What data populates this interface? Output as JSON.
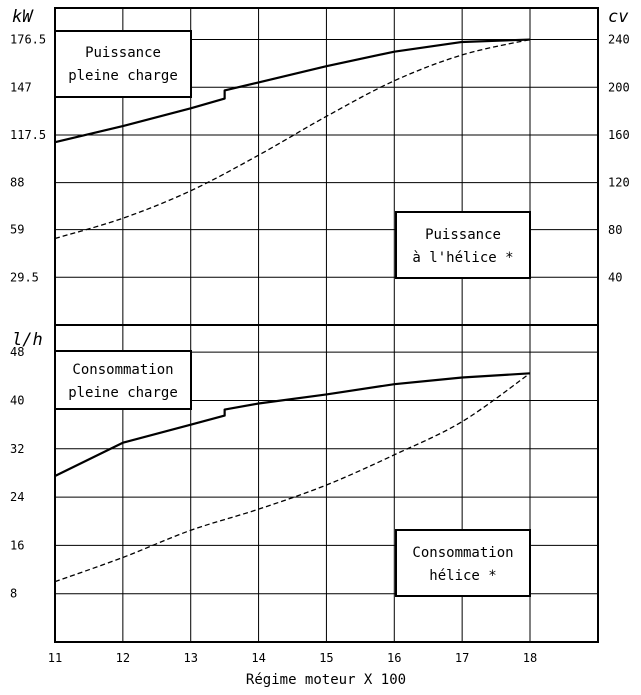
{
  "chart_data": [
    {
      "type": "line",
      "left_axis_unit": "kW",
      "right_axis_unit": "cv",
      "x": [
        11,
        12,
        13,
        13.5,
        13.5,
        14,
        15,
        16,
        17,
        18
      ],
      "xlim": [
        11,
        18
      ],
      "ylim": [
        0,
        196
      ],
      "right_ylim": [
        0,
        266.7
      ],
      "y_ticks": [
        "29.5",
        "59",
        "88",
        "117.5",
        "147",
        "176.5"
      ],
      "y_tick_values": [
        29.5,
        59,
        88,
        117.5,
        147,
        176.5
      ],
      "right_ticks": [
        "40",
        "80",
        "120",
        "160",
        "200",
        "240"
      ],
      "right_tick_values": [
        40,
        80,
        120,
        160,
        200,
        240
      ],
      "grid": true,
      "series": [
        {
          "style": "solid",
          "values": [
            113,
            123,
            134,
            140,
            145,
            150,
            160,
            169,
            175,
            176.5
          ]
        },
        {
          "style": "dashed",
          "x": [
            11,
            12,
            13,
            14,
            15,
            16,
            17,
            18
          ],
          "values": [
            53.5,
            66,
            83,
            105,
            129,
            151,
            167,
            176.5
          ]
        }
      ],
      "boxes": [
        {
          "lines": [
            "Puissance",
            "pleine charge"
          ]
        },
        {
          "lines": [
            "Puissance",
            "à l'hélice *"
          ]
        }
      ]
    },
    {
      "type": "line",
      "left_axis_unit": "l/h",
      "x": [
        11,
        12,
        13,
        13.5,
        13.5,
        14,
        15,
        16,
        17,
        18
      ],
      "xlim": [
        11,
        18
      ],
      "ylim": [
        0,
        52.5
      ],
      "y_ticks": [
        "8",
        "16",
        "24",
        "32",
        "40",
        "48"
      ],
      "y_tick_values": [
        8,
        16,
        24,
        32,
        40,
        48
      ],
      "grid": true,
      "series": [
        {
          "style": "solid",
          "values": [
            27.5,
            33,
            36,
            37.5,
            38.5,
            39.5,
            41,
            42.7,
            43.8,
            44.5
          ]
        },
        {
          "style": "dashed",
          "x": [
            11,
            12,
            13,
            14,
            15,
            16,
            17,
            18
          ],
          "values": [
            10,
            14,
            18.5,
            22,
            26,
            31,
            36.5,
            44.5
          ]
        }
      ],
      "boxes": [
        {
          "lines": [
            "Consommation",
            "pleine charge"
          ]
        },
        {
          "lines": [
            "Consommation",
            "hélice *"
          ]
        }
      ]
    }
  ],
  "x_ticks": [
    "11",
    "12",
    "13",
    "14",
    "15",
    "16",
    "17",
    "18"
  ],
  "x_tick_values": [
    11,
    12,
    13,
    14,
    15,
    16,
    17,
    18
  ],
  "xlabel": "Régime moteur X 100"
}
